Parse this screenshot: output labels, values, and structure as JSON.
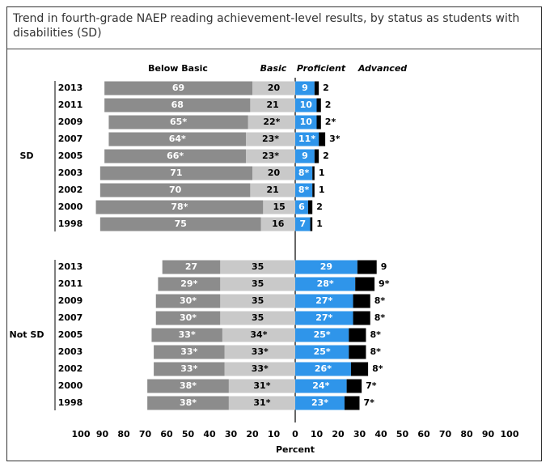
{
  "chart_data": {
    "type": "diverging_bar",
    "title": "Trend in fourth-grade NAEP reading achievement-level results, by status as students with disabilities (SD)",
    "xlabel": "Percent",
    "xlim": [
      -100,
      100
    ],
    "xticks": [
      {
        "value": -100,
        "label": "100"
      },
      {
        "value": -90,
        "label": "90"
      },
      {
        "value": -80,
        "label": "80"
      },
      {
        "value": -70,
        "label": "70"
      },
      {
        "value": -60,
        "label": "60"
      },
      {
        "value": -50,
        "label": "50"
      },
      {
        "value": -40,
        "label": "40"
      },
      {
        "value": -30,
        "label": "30"
      },
      {
        "value": -20,
        "label": "20"
      },
      {
        "value": -10,
        "label": "10"
      },
      0,
      10,
      20,
      30,
      40,
      50,
      60,
      70,
      80,
      90,
      100
    ],
    "series": [
      {
        "name": "Below Basic",
        "color": "#8c8c8c"
      },
      {
        "name": "Basic",
        "color": "#c9c9c9"
      },
      {
        "name": "Proficient",
        "color": "#2f95ea"
      },
      {
        "name": "Advanced",
        "color": "#000000"
      }
    ],
    "groups": [
      {
        "label": "SD",
        "categories": [
          "2013",
          "2011",
          "2009",
          "2007",
          "2005",
          "2003",
          "2002",
          "2000",
          "1998"
        ],
        "values": [
          [
            69,
            68,
            65,
            64,
            66,
            71,
            70,
            78,
            75
          ],
          [
            20,
            21,
            22,
            23,
            23,
            20,
            21,
            15,
            16
          ],
          [
            9,
            10,
            10,
            11,
            9,
            8,
            8,
            6,
            7
          ],
          [
            2,
            2,
            2,
            3,
            2,
            1,
            1,
            2,
            1
          ]
        ],
        "value_labels": [
          [
            "69",
            "68",
            "65*",
            "64*",
            "66*",
            "71",
            "70",
            "78*",
            "75"
          ],
          [
            "20",
            "21",
            "22*",
            "23*",
            "23*",
            "20",
            "21",
            "15",
            "16"
          ],
          [
            "9",
            "10",
            "10",
            "11*",
            "9",
            "8*",
            "8*",
            "6",
            "7"
          ],
          [
            "2",
            "2",
            "2*",
            "3*",
            "2",
            "1",
            "1",
            "2",
            "1"
          ]
        ]
      },
      {
        "label": "Not SD",
        "categories": [
          "2013",
          "2011",
          "2009",
          "2007",
          "2005",
          "2003",
          "2002",
          "2000",
          "1998"
        ],
        "values": [
          [
            27,
            29,
            30,
            30,
            33,
            33,
            33,
            38,
            38
          ],
          [
            35,
            35,
            35,
            35,
            34,
            33,
            33,
            31,
            31
          ],
          [
            29,
            28,
            27,
            27,
            25,
            25,
            26,
            24,
            23
          ],
          [
            9,
            9,
            8,
            8,
            8,
            8,
            8,
            7,
            7
          ]
        ],
        "value_labels": [
          [
            "27",
            "29*",
            "30*",
            "30*",
            "33*",
            "33*",
            "33*",
            "38*",
            "38*"
          ],
          [
            "35",
            "35",
            "35",
            "35",
            "34*",
            "33*",
            "33*",
            "31*",
            "31*"
          ],
          [
            "29",
            "28*",
            "27*",
            "27*",
            "25*",
            "25*",
            "26*",
            "24*",
            "23*"
          ],
          [
            "9",
            "9*",
            "8*",
            "8*",
            "8*",
            "8*",
            "8*",
            "7*",
            "7*"
          ]
        ]
      }
    ]
  }
}
